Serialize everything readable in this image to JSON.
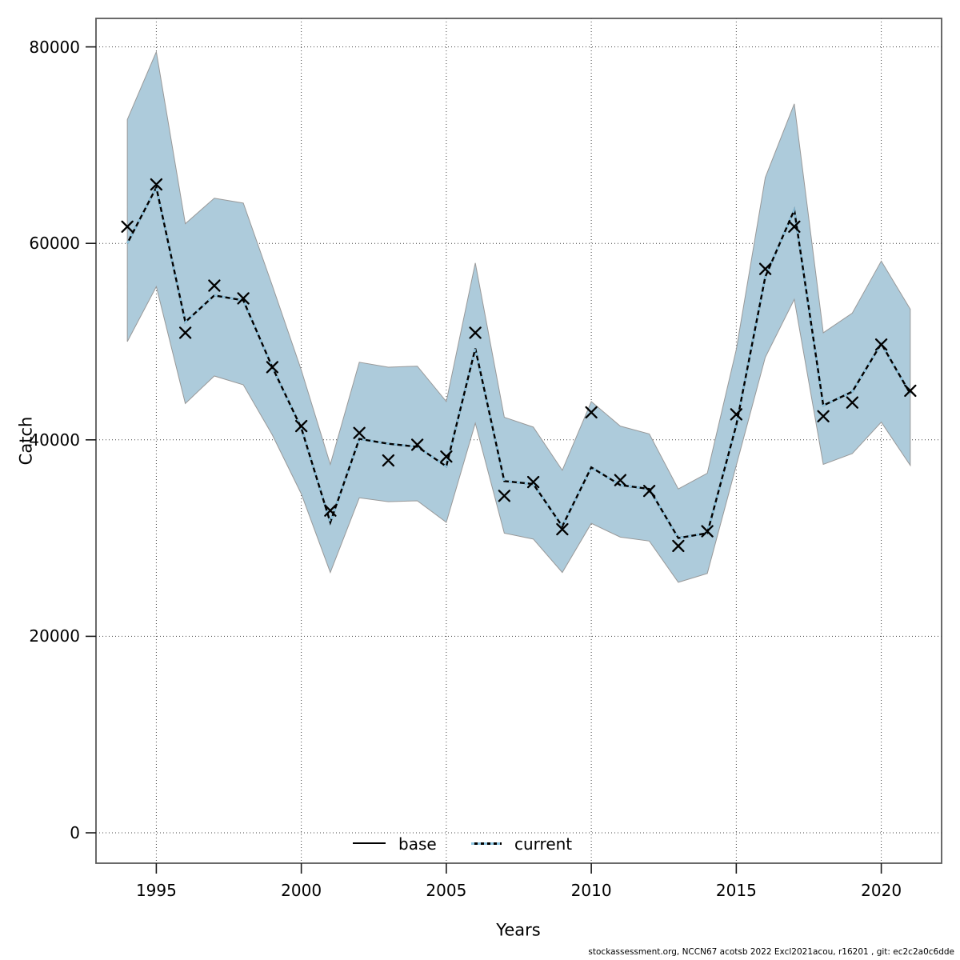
{
  "figure": {
    "xlabel": "Years",
    "ylabel": "Catch",
    "footer": "stockassessment.org, NCCN67 acotsb 2022 Excl2021acou, r16201 , git: ec2c2a0c6dde",
    "legend": {
      "base_label": "base",
      "current_label": "current"
    }
  },
  "colors": {
    "band_fill": "#adcbdb",
    "band_edge": "#999999",
    "base_line": "#000000",
    "current_dash": "#8ec6e2",
    "marker": "#000000",
    "grid": "#444444",
    "frame": "#595959",
    "tick": "#1a1a1a"
  },
  "chart_data": {
    "type": "line",
    "title": "",
    "xlabel": "Years",
    "ylabel": "Catch",
    "grid": true,
    "legend_position": "bottom-center",
    "legend_entries": [
      "base",
      "current"
    ],
    "x_ticks": [
      1995,
      2000,
      2005,
      2010,
      2015,
      2020
    ],
    "y_ticks": [
      0,
      20000,
      40000,
      60000,
      80000
    ],
    "xlim": [
      1992.92,
      2022.08
    ],
    "ylim": [
      -3094,
      82900
    ],
    "years": [
      1994,
      1995,
      1996,
      1997,
      1998,
      1999,
      2000,
      2001,
      2002,
      2003,
      2004,
      2005,
      2006,
      2007,
      2008,
      2009,
      2010,
      2011,
      2012,
      2013,
      2014,
      2015,
      2016,
      2017,
      2018,
      2019,
      2020,
      2021
    ],
    "observed_catch_markers": [
      61700,
      66000,
      50900,
      55700,
      54400,
      47400,
      41400,
      32800,
      40700,
      37900,
      39500,
      38300,
      50900,
      34300,
      35700,
      30900,
      42800,
      35900,
      34800,
      29200,
      30700,
      42600,
      57400,
      61700,
      42400,
      43800,
      49700,
      45000
    ],
    "series": [
      {
        "name": "base",
        "style": "solid",
        "color": "#000000",
        "values": [
          60000,
          65700,
          52000,
          54700,
          54200,
          47400,
          41200,
          31600,
          40100,
          39600,
          39300,
          37300,
          49300,
          35800,
          35500,
          31200,
          37200,
          35400,
          35000,
          30000,
          30500,
          41500,
          56600,
          63400,
          43500,
          44900,
          49800,
          44700
        ]
      },
      {
        "name": "current",
        "style": "dotted",
        "color": "#8ec6e2",
        "values": [
          60000,
          65700,
          52000,
          54700,
          54200,
          47400,
          41200,
          31600,
          40100,
          39600,
          39300,
          37300,
          49300,
          35800,
          35500,
          31200,
          37200,
          35400,
          35000,
          30000,
          30500,
          41500,
          56600,
          63400,
          43500,
          44900,
          49800,
          44700
        ]
      }
    ],
    "confidence_band": {
      "upper": [
        72600,
        79500,
        62000,
        64600,
        64100,
        55700,
        47100,
        37500,
        47900,
        47400,
        47500,
        43900,
        58000,
        42300,
        41300,
        36900,
        43900,
        41400,
        40600,
        35000,
        36600,
        49200,
        66700,
        74200,
        50900,
        52900,
        58200,
        53300
      ],
      "lower": [
        50000,
        55600,
        43700,
        46500,
        45600,
        40500,
        34500,
        26500,
        34100,
        33700,
        33800,
        31600,
        41700,
        30500,
        29900,
        26500,
        31500,
        30100,
        29700,
        25500,
        26400,
        37400,
        48400,
        54300,
        37500,
        38600,
        41800,
        37400
      ]
    }
  }
}
